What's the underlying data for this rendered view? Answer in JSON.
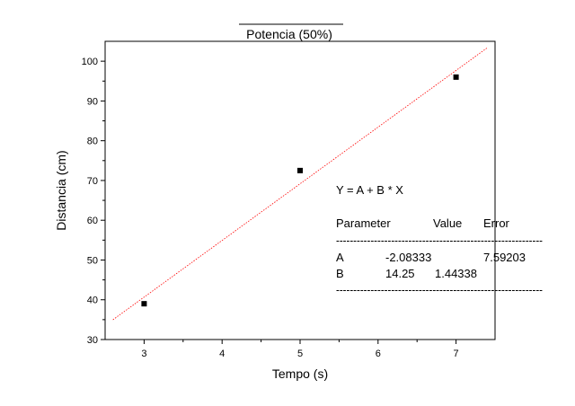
{
  "chart_data": {
    "type": "scatter",
    "title": "Potencia (50%)",
    "xlabel": "Tempo (s)",
    "ylabel": "Distancia (cm)",
    "xlim": [
      2.5,
      7.5
    ],
    "ylim": [
      30,
      105
    ],
    "xticks": [
      3,
      4,
      5,
      6,
      7
    ],
    "yticks": [
      30,
      40,
      50,
      60,
      70,
      80,
      90,
      100
    ],
    "grid": false,
    "series": [
      {
        "points": [
          {
            "x": 3,
            "y": 39
          },
          {
            "x": 5,
            "y": 72.5
          },
          {
            "x": 7,
            "y": 96
          }
        ],
        "marker": "square",
        "color": "#000000"
      }
    ],
    "fit_line": {
      "intercept": -2.08333,
      "slope": 14.25,
      "x_range": [
        2.6,
        7.4
      ],
      "color": "#ff0000",
      "style": "dotted"
    },
    "fit_box": {
      "equation": "Y = A + B * X",
      "header": [
        "Parameter",
        "Value",
        "Error"
      ],
      "separator": "------------------------------------------------------------",
      "rows": [
        [
          "A",
          "-2.08333",
          "7.59203"
        ],
        [
          "B",
          "14.25",
          "1.44338"
        ]
      ]
    }
  }
}
